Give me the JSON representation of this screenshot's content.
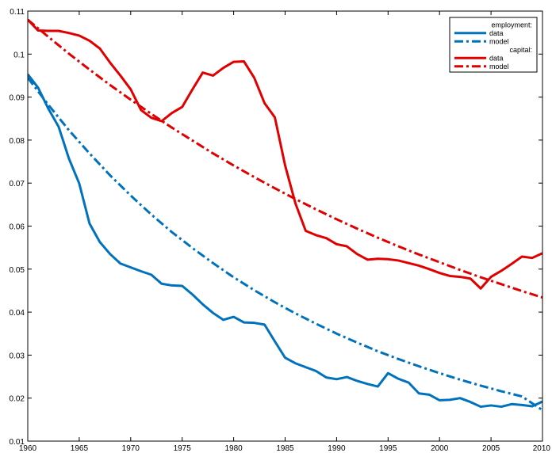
{
  "chart_data": {
    "type": "line",
    "title": "",
    "xlabel": "",
    "ylabel": "",
    "xlim": [
      1960,
      2010
    ],
    "ylim": [
      0.01,
      0.11
    ],
    "x_ticks": [
      1960,
      1965,
      1970,
      1975,
      1980,
      1985,
      1990,
      1995,
      2000,
      2005,
      2010
    ],
    "y_ticks": [
      0.01,
      0.02,
      0.03,
      0.04,
      0.05,
      0.06,
      0.07,
      0.08,
      0.09,
      0.1,
      0.11
    ],
    "x_tick_labels": [
      "1960",
      "1965",
      "1970",
      "1975",
      "1980",
      "1985",
      "1990",
      "1995",
      "2000",
      "2005",
      "2010"
    ],
    "y_tick_labels": [
      "0.01",
      "0.02",
      "0.03",
      "0.04",
      "0.05",
      "0.06",
      "0.07",
      "0.08",
      "0.09",
      "0.1",
      "0.11"
    ],
    "grid": false,
    "legend_position": "top-right",
    "legend": {
      "groups": [
        {
          "heading": "employment:",
          "entries": [
            {
              "label": "data",
              "color": "#0072BD",
              "style": "solid"
            },
            {
              "label": "model",
              "color": "#0072BD",
              "style": "dashdot"
            }
          ]
        },
        {
          "heading": "capital:",
          "entries": [
            {
              "label": "data",
              "color": "#E00000",
              "style": "solid"
            },
            {
              "label": "model",
              "color": "#E00000",
              "style": "dashdot"
            }
          ]
        }
      ]
    },
    "series": [
      {
        "group": "employment",
        "kind": "data",
        "color": "#0072BD",
        "style": "solid",
        "x": [
          1960,
          1961,
          1962,
          1963,
          1964,
          1965,
          1966,
          1967,
          1968,
          1969,
          1970,
          1971,
          1972,
          1973,
          1974,
          1975,
          1976,
          1977,
          1978,
          1979,
          1980,
          1981,
          1982,
          1983,
          1984,
          1985,
          1986,
          1987,
          1988,
          1989,
          1990,
          1991,
          1992,
          1993,
          1994,
          1995,
          1996,
          1997,
          1998,
          1999,
          2000,
          2001,
          2002,
          2003,
          2004,
          2005,
          2006,
          2007,
          2008,
          2009,
          2010
        ],
        "y": [
          0.0953,
          0.0922,
          0.0873,
          0.0831,
          0.0757,
          0.0699,
          0.0606,
          0.0563,
          0.0535,
          0.0513,
          0.0504,
          0.0495,
          0.0487,
          0.0466,
          0.0462,
          0.0461,
          0.0441,
          0.0418,
          0.0398,
          0.0382,
          0.0389,
          0.0376,
          0.0375,
          0.0371,
          0.0332,
          0.0294,
          0.0281,
          0.0272,
          0.0263,
          0.0248,
          0.0244,
          0.0249,
          0.024,
          0.0233,
          0.0227,
          0.0258,
          0.0245,
          0.0236,
          0.0211,
          0.0208,
          0.0195,
          0.0196,
          0.02,
          0.0191,
          0.018,
          0.0183,
          0.018,
          0.0186,
          0.0184,
          0.0181,
          0.0192
        ]
      },
      {
        "group": "employment",
        "kind": "model",
        "color": "#0072BD",
        "style": "dashdot",
        "x": [
          1960,
          1962,
          1964,
          1966,
          1968,
          1970,
          1972,
          1974,
          1976,
          1978,
          1980,
          1982,
          1984,
          1986,
          1988,
          1990,
          1992,
          1994,
          1996,
          1998,
          2000,
          2002,
          2004,
          2006,
          2008,
          2010
        ],
        "y": [
          0.0945,
          0.0882,
          0.0823,
          0.0769,
          0.0718,
          0.0671,
          0.0627,
          0.0586,
          0.0549,
          0.0514,
          0.0481,
          0.0451,
          0.0423,
          0.0397,
          0.0373,
          0.035,
          0.0329,
          0.0309,
          0.0291,
          0.0274,
          0.0258,
          0.0243,
          0.0229,
          0.0216,
          0.0204,
          0.0172
        ]
      },
      {
        "group": "capital",
        "kind": "data",
        "color": "#E00000",
        "style": "solid",
        "x": [
          1960,
          1961,
          1962,
          1963,
          1964,
          1965,
          1966,
          1967,
          1968,
          1969,
          1970,
          1971,
          1972,
          1973,
          1974,
          1975,
          1976,
          1977,
          1978,
          1979,
          1980,
          1981,
          1982,
          1983,
          1984,
          1985,
          1986,
          1987,
          1988,
          1989,
          1990,
          1991,
          1992,
          1993,
          1994,
          1995,
          1996,
          1997,
          1998,
          1999,
          2000,
          2001,
          2002,
          2003,
          2004,
          2005,
          2006,
          2007,
          2008,
          2009,
          2010
        ],
        "y": [
          0.108,
          0.1055,
          0.1054,
          0.1054,
          0.1049,
          0.1043,
          0.1031,
          0.1013,
          0.098,
          0.095,
          0.0918,
          0.087,
          0.0852,
          0.0844,
          0.0863,
          0.0877,
          0.0918,
          0.0957,
          0.095,
          0.0968,
          0.0982,
          0.0983,
          0.0945,
          0.0886,
          0.0853,
          0.0741,
          0.0653,
          0.0589,
          0.0579,
          0.0572,
          0.0558,
          0.0553,
          0.0535,
          0.0522,
          0.0524,
          0.0523,
          0.052,
          0.0514,
          0.0508,
          0.05,
          0.0491,
          0.0484,
          0.0482,
          0.0478,
          0.0455,
          0.0482,
          0.0496,
          0.0512,
          0.0529,
          0.0526,
          0.0537
        ]
      },
      {
        "group": "capital",
        "kind": "model",
        "color": "#E00000",
        "style": "dashdot",
        "x": [
          1960,
          1962,
          1964,
          1966,
          1968,
          1970,
          1972,
          1974,
          1976,
          1978,
          1980,
          1982,
          1984,
          1986,
          1988,
          1990,
          1992,
          1994,
          1996,
          1998,
          2000,
          2002,
          2004,
          2006,
          2008,
          2010
        ],
        "y": [
          0.108,
          0.104,
          0.1001,
          0.0964,
          0.0928,
          0.0894,
          0.0861,
          0.0829,
          0.0799,
          0.0769,
          0.0741,
          0.0714,
          0.0688,
          0.0663,
          0.0639,
          0.0616,
          0.0594,
          0.0573,
          0.0553,
          0.0534,
          0.0516,
          0.0498,
          0.0481,
          0.0465,
          0.0449,
          0.0434
        ]
      }
    ]
  }
}
